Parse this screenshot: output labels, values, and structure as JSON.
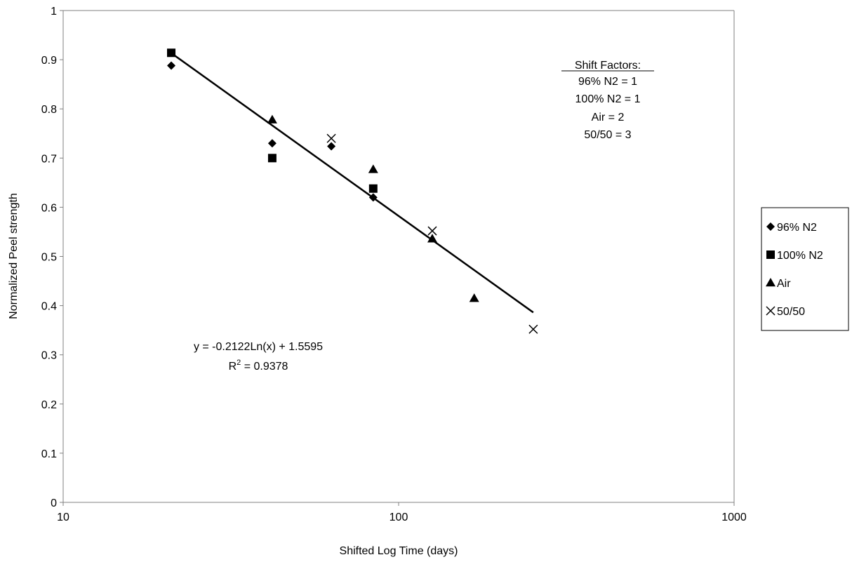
{
  "chart_data": {
    "type": "scatter",
    "title": "",
    "xlabel": "Shifted Log Time (days)",
    "ylabel": "Normalized Peel strength",
    "xscale": "log",
    "xlim": [
      10,
      1000
    ],
    "ylim": [
      0,
      1
    ],
    "x_ticks": [
      10,
      100,
      1000
    ],
    "x_tick_labels": [
      "10",
      "100",
      "1000"
    ],
    "y_ticks": [
      0,
      0.1,
      0.2,
      0.3,
      0.4,
      0.5,
      0.6,
      0.7,
      0.8,
      0.9,
      1
    ],
    "y_tick_labels": [
      "0",
      "0.1",
      "0.2",
      "0.3",
      "0.4",
      "0.5",
      "0.6",
      "0.7",
      "0.8",
      "0.9",
      "1"
    ],
    "grid": false,
    "legend_position": "right",
    "series": [
      {
        "name": "96% N2",
        "marker": "diamond",
        "x": [
          21,
          42,
          63,
          84
        ],
        "y": [
          0.888,
          0.73,
          0.724,
          0.62
        ]
      },
      {
        "name": "100% N2",
        "marker": "square",
        "x": [
          21,
          42,
          84
        ],
        "y": [
          0.914,
          0.7,
          0.638
        ]
      },
      {
        "name": "Air",
        "marker": "triangle",
        "x": [
          42,
          84,
          126,
          168
        ],
        "y": [
          0.778,
          0.677,
          0.536,
          0.415
        ]
      },
      {
        "name": "50/50",
        "marker": "x",
        "x": [
          63,
          126,
          252
        ],
        "y": [
          0.74,
          0.552,
          0.352
        ]
      }
    ],
    "trendline": {
      "type": "log",
      "slope": -0.2122,
      "intercept": 1.5595,
      "x_range": [
        21,
        252
      ],
      "equation_label": "y = -0.2122Ln(x) + 1.5595",
      "r2_prefix": "R",
      "r2_sup": "2",
      "r2_value": " = 0.9378"
    },
    "annotation_box": {
      "header": "Shift Factors:",
      "lines": [
        "96% N2 = 1",
        "100% N2 = 1",
        "Air = 2",
        "50/50 = 3"
      ]
    },
    "colors": {
      "marker": "#000000",
      "line": "#000000",
      "axis": "#808080",
      "background": "#ffffff"
    }
  }
}
